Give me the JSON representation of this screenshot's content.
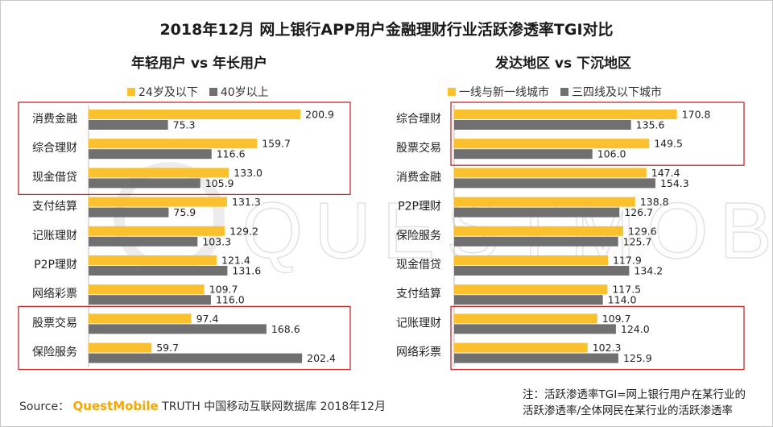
{
  "title": "2018年12月 网上银行APP用户金融理财行业活跃渗透率TGI对比",
  "colors": {
    "series1": "#fbc02d",
    "series2": "#707070",
    "highlight": "#c62828",
    "brand": "#f5a800",
    "watermark": "#ececec"
  },
  "watermark_text": "QUESTMOBILE",
  "chart_data": [
    {
      "type": "bar",
      "orientation": "horizontal",
      "title": "年轻用户 vs 年长用户",
      "categories": [
        "消费金融",
        "综合理财",
        "现金借贷",
        "支付结算",
        "记账理财",
        "P2P理财",
        "网络彩票",
        "股票交易",
        "保险服务"
      ],
      "series": [
        {
          "name": "24岁及以下",
          "values": [
            200.9,
            159.7,
            133.0,
            131.3,
            129.2,
            121.4,
            109.7,
            97.4,
            59.7
          ],
          "labels": [
            "200.9",
            "159.7",
            "133.0",
            "131.3",
            "129.2",
            "121.4",
            "109.7",
            "97.4",
            "59.7"
          ]
        },
        {
          "name": "40岁以上",
          "values": [
            75.3,
            116.6,
            105.9,
            75.9,
            103.3,
            131.6,
            116.0,
            168.6,
            202.4
          ],
          "labels": [
            "75.3",
            "116.6",
            "105.9",
            "75.9",
            "103.3",
            "131.6",
            "116.0",
            "168.6",
            "202.4"
          ]
        }
      ],
      "highlight_groups": [
        [
          0,
          2
        ],
        [
          7,
          8
        ]
      ],
      "legend_position": "top"
    },
    {
      "type": "bar",
      "orientation": "horizontal",
      "title": "发达地区 vs 下沉地区",
      "categories": [
        "综合理财",
        "股票交易",
        "消费金融",
        "P2P理财",
        "保险服务",
        "现金借贷",
        "支付结算",
        "记账理财",
        "网络彩票"
      ],
      "series": [
        {
          "name": "一线与新一线城市",
          "values": [
            170.8,
            149.5,
            147.4,
            138.8,
            129.6,
            117.9,
            117.5,
            109.7,
            102.3
          ],
          "labels": [
            "170.8",
            "149.5",
            "147.4",
            "138.8",
            "129.6",
            "117.9",
            "117.5",
            "109.7",
            "102.3"
          ]
        },
        {
          "name": "三四线及以下城市",
          "values": [
            135.6,
            106.0,
            154.3,
            126.7,
            125.7,
            134.2,
            114.0,
            124.0,
            125.9
          ],
          "labels": [
            "135.6",
            "106.0",
            "154.3",
            "126.7",
            "125.7",
            "134.2",
            "114.0",
            "124.0",
            "125.9"
          ]
        }
      ],
      "highlight_groups": [
        [
          0,
          1
        ],
        [
          7,
          8
        ]
      ],
      "legend_position": "top"
    }
  ],
  "footer": {
    "source_label": "Source：",
    "source_brand": "QuestMobile",
    "source_text": "TRUTH 中国移动互联网数据库 2018年12月",
    "note_line1": "注：活跃渗透率TGI=网上银行用户在某行业的",
    "note_line2": "活跃渗透率/全体网民在某行业的活跃渗透率"
  }
}
